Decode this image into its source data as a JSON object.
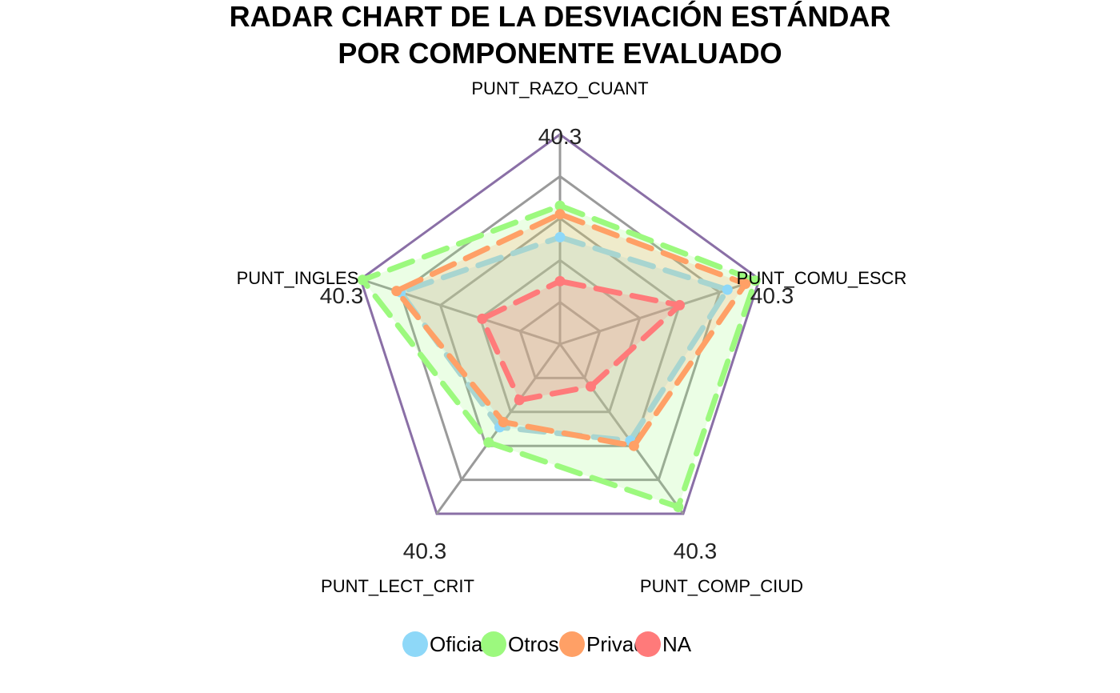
{
  "chart_data": {
    "type": "radar",
    "title_lines": [
      "RADAR CHART DE LA DESVIACIÓN ESTÁNDAR",
      "POR COMPONENTE EVALUADO"
    ],
    "axes": [
      "PUNT_RAZO_CUANT",
      "PUNT_COMU_ESCR",
      "PUNT_COMP_CIUD",
      "PUNT_LECT_CRIT",
      "PUNT_INGLES"
    ],
    "axis_max_label": "40.3",
    "rmin": 0,
    "rmax": 1,
    "grid_levels": [
      0.2,
      0.4,
      0.6,
      0.8,
      1.0
    ],
    "series": [
      {
        "name": "Oficial",
        "values": [
          0.51,
          0.84,
          0.57,
          0.49,
          0.8
        ],
        "color": "#8ed8f8",
        "line_color": "#a8d5d0"
      },
      {
        "name": "Otros",
        "values": [
          0.66,
          0.98,
          0.96,
          0.58,
          0.99
        ],
        "color": "#9cf97e",
        "line_color": "#9cf97e"
      },
      {
        "name": "Privado",
        "values": [
          0.62,
          0.93,
          0.6,
          0.46,
          0.82
        ],
        "color": "#ffa066",
        "line_color": "#ffa066"
      },
      {
        "name": "NA",
        "values": [
          0.3,
          0.6,
          0.25,
          0.33,
          0.39
        ],
        "color": "#ff7a7a",
        "line_color": "#ff7a7a"
      }
    ],
    "grid_color": "#9a9a9a",
    "outer_color": "#8a6fa6",
    "legend_position": "bottom"
  }
}
